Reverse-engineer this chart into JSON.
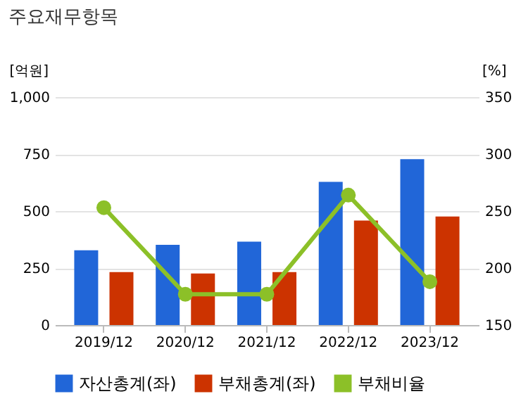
{
  "chart_data": {
    "type": "bar",
    "title": "주요재무항목",
    "ylabel": "[억원]",
    "y2label": "[%]",
    "categories": [
      "2019/12",
      "2020/12",
      "2021/12",
      "2022/12",
      "2023/12"
    ],
    "series": [
      {
        "name": "자산총계(좌)",
        "color": "#2166d8",
        "values": [
          328,
          352,
          366,
          628,
          728
        ]
      },
      {
        "name": "부채총계(좌)",
        "color": "#cc3300",
        "values": [
          232,
          226,
          232,
          458,
          476
        ]
      },
      {
        "name": "부채비율",
        "type": "line",
        "axis": "y2",
        "color": "#8cc028",
        "values": [
          253,
          177,
          177,
          264,
          188
        ]
      }
    ],
    "ylim": [
      0,
      1000
    ],
    "yticks": [
      0,
      250,
      500,
      750,
      {
        "value": 1000,
        "label": "1,000"
      }
    ],
    "y2lim": [
      150,
      350
    ],
    "y2ticks": [
      150,
      200,
      250,
      300,
      350
    ],
    "grid": "y",
    "legend": "bottom",
    "marker": "circle"
  }
}
